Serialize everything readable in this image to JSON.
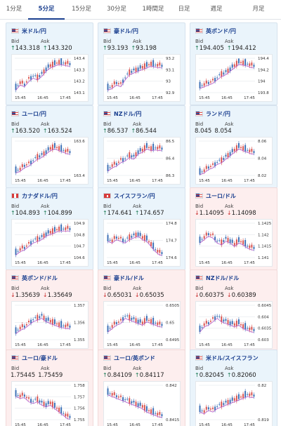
{
  "tabs": [
    {
      "label": "1分足",
      "active": false
    },
    {
      "label": "5分足",
      "active": true
    },
    {
      "label": "15分足",
      "active": false
    },
    {
      "label": "30分足",
      "active": false
    },
    {
      "label": "1時間足",
      "active": false
    },
    {
      "label": "日足",
      "active": false
    },
    {
      "label": "週足",
      "active": false
    },
    {
      "label": "月足",
      "active": false
    }
  ],
  "labels": {
    "bid": "Bid",
    "ask": "Ask"
  },
  "colors": {
    "up_bg": "#eaf4fb",
    "down_bg": "#fdeeee",
    "up_candle": "#3b6fb5",
    "down_candle": "#d9534f",
    "ma_line": "#b056c9",
    "up_arrow": "#1c7a55",
    "down_arrow": "#c92a2a"
  },
  "cards": [
    {
      "title": "米ドル/円",
      "flag": "us",
      "trend": "up",
      "bid": "143.318",
      "ask": "143.320",
      "arrow": "up",
      "x_ticks": [
        "15:45",
        "16:45",
        "17:45"
      ],
      "y_ticks": [
        "143.4",
        "143.3",
        "143.2",
        "143.1"
      ],
      "shape": [
        0.15,
        0.3,
        0.25,
        0.4,
        0.5,
        0.45,
        0.55,
        0.7,
        0.8,
        0.85,
        0.9,
        0.88,
        0.85
      ]
    },
    {
      "title": "豪ドル/円",
      "flag": "au",
      "trend": "up",
      "bid": "93.193",
      "ask": "93.198",
      "arrow": "up",
      "x_ticks": [
        "15:45",
        "16:45",
        "17:45"
      ],
      "y_ticks": [
        "93.2",
        "93.1",
        "93",
        "92.9"
      ],
      "shape": [
        0.15,
        0.2,
        0.3,
        0.25,
        0.45,
        0.6,
        0.65,
        0.7,
        0.75,
        0.8,
        0.85,
        0.82,
        0.8
      ]
    },
    {
      "title": "英ポンド/円",
      "flag": "gb",
      "trend": "up",
      "bid": "194.405",
      "ask": "194.412",
      "arrow": "up",
      "x_ticks": [
        "15:45",
        "16:45",
        "17:45"
      ],
      "y_ticks": [
        "194.4",
        "194.2",
        "194",
        "193.8"
      ],
      "shape": [
        0.2,
        0.25,
        0.3,
        0.35,
        0.45,
        0.55,
        0.6,
        0.7,
        0.8,
        0.9,
        0.88,
        0.85,
        0.8
      ]
    },
    {
      "title": "ユーロ/円",
      "flag": "eu",
      "trend": "up",
      "bid": "163.520",
      "ask": "163.524",
      "arrow": "up",
      "x_ticks": [
        "15:45",
        "16:45",
        "17:45"
      ],
      "y_ticks": [
        "163.6",
        "163.4"
      ],
      "shape": [
        0.15,
        0.2,
        0.3,
        0.35,
        0.45,
        0.55,
        0.6,
        0.7,
        0.8,
        0.85,
        0.8,
        0.75,
        0.7
      ]
    },
    {
      "title": "NZドル/円",
      "flag": "nz",
      "trend": "up",
      "bid": "86.537",
      "ask": "86.544",
      "arrow": "up",
      "x_ticks": [
        "15:45",
        "16:45",
        "17:45"
      ],
      "y_ticks": [
        "86.5",
        "86.4",
        "86.3"
      ],
      "shape": [
        0.2,
        0.3,
        0.35,
        0.45,
        0.5,
        0.6,
        0.55,
        0.7,
        0.75,
        0.85,
        0.8,
        0.82,
        0.8
      ]
    },
    {
      "title": "ランド/円",
      "flag": "za",
      "trend": "up",
      "bid": "8.045",
      "ask": "8.054",
      "arrow": "none",
      "x_ticks": [
        "15:45",
        "16:45",
        "17:45"
      ],
      "y_ticks": [
        "8.06",
        "8.04",
        "8.02"
      ],
      "shape": [
        0.1,
        0.15,
        0.25,
        0.3,
        0.4,
        0.45,
        0.55,
        0.65,
        0.75,
        0.85,
        0.8,
        0.75,
        0.7
      ]
    },
    {
      "title": "カナダドル/円",
      "flag": "ca",
      "trend": "up",
      "bid": "104.893",
      "ask": "104.899",
      "arrow": "up",
      "x_ticks": [
        "15:45",
        "16:45",
        "17:45"
      ],
      "y_ticks": [
        "104.9",
        "104.8",
        "104.7",
        "104.6"
      ],
      "shape": [
        0.15,
        0.25,
        0.3,
        0.4,
        0.5,
        0.55,
        0.6,
        0.7,
        0.75,
        0.8,
        0.85,
        0.85,
        0.85
      ]
    },
    {
      "title": "スイスフラン/円",
      "flag": "ch",
      "trend": "up",
      "bid": "174.641",
      "ask": "174.657",
      "arrow": "up",
      "x_ticks": [
        "15:45",
        "16:45",
        "17:45"
      ],
      "y_ticks": [
        "174.8",
        "174.7",
        "174.6"
      ],
      "shape": [
        0.55,
        0.5,
        0.6,
        0.55,
        0.5,
        0.6,
        0.65,
        0.7,
        0.6,
        0.55,
        0.4,
        0.25,
        0.15
      ]
    },
    {
      "title": "ユーロ/ドル",
      "flag": "eu",
      "trend": "down",
      "bid": "1.14095",
      "ask": "1.14098",
      "arrow": "down",
      "x_ticks": [
        "15:45",
        "16:45",
        "17:45"
      ],
      "y_ticks": [
        "1.1425",
        "1.142",
        "1.1415",
        "1.141"
      ],
      "shape": [
        0.5,
        0.6,
        0.7,
        0.65,
        0.5,
        0.45,
        0.55,
        0.5,
        0.4,
        0.5,
        0.45,
        0.35,
        0.3
      ]
    },
    {
      "title": "英ポンド/ドル",
      "flag": "gb",
      "trend": "down",
      "bid": "1.35639",
      "ask": "1.35649",
      "arrow": "down",
      "x_ticks": [
        "15:45",
        "16:45",
        "17:45"
      ],
      "y_ticks": [
        "1.357",
        "1.356",
        "1.355"
      ],
      "shape": [
        0.25,
        0.35,
        0.4,
        0.5,
        0.6,
        0.65,
        0.7,
        0.6,
        0.55,
        0.5,
        0.45,
        0.42,
        0.4
      ]
    },
    {
      "title": "豪ドル/ドル",
      "flag": "au",
      "trend": "down",
      "bid": "0.65031",
      "ask": "0.65035",
      "arrow": "down",
      "x_ticks": [
        "15:45",
        "16:45",
        "17:45"
      ],
      "y_ticks": [
        "0.6505",
        "0.65",
        "0.6495"
      ],
      "shape": [
        0.3,
        0.4,
        0.5,
        0.55,
        0.7,
        0.65,
        0.6,
        0.55,
        0.5,
        0.6,
        0.55,
        0.5,
        0.45
      ]
    },
    {
      "title": "NZドル/ドル",
      "flag": "nz",
      "trend": "down",
      "bid": "0.60375",
      "ask": "0.60389",
      "arrow": "down",
      "x_ticks": [
        "15:45",
        "16:45",
        "17:45"
      ],
      "y_ticks": [
        "0.6045",
        "0.604",
        "0.6035",
        "0.603"
      ],
      "shape": [
        0.3,
        0.45,
        0.5,
        0.6,
        0.7,
        0.6,
        0.55,
        0.5,
        0.45,
        0.5,
        0.4,
        0.35,
        0.3
      ]
    },
    {
      "title": "ユーロ/豪ドル",
      "flag": "eu",
      "trend": "down",
      "bid": "1.75445",
      "ask": "1.75459",
      "arrow": "none",
      "x_ticks": [
        "15:45",
        "16:45",
        "17:45"
      ],
      "y_ticks": [
        "1.758",
        "1.757",
        "1.756",
        "1.755"
      ],
      "shape": [
        0.75,
        0.7,
        0.72,
        0.6,
        0.55,
        0.6,
        0.5,
        0.45,
        0.5,
        0.4,
        0.3,
        0.2,
        0.1
      ]
    },
    {
      "title": "ユーロ/英ポンド",
      "flag": "eu",
      "trend": "down",
      "bid": "0.84109",
      "ask": "0.84117",
      "arrow": "up",
      "x_ticks": [
        "15:45",
        "16:45",
        "17:45"
      ],
      "y_ticks": [
        "0.842",
        "0.8415"
      ],
      "shape": [
        0.8,
        0.75,
        0.7,
        0.65,
        0.6,
        0.55,
        0.5,
        0.45,
        0.4,
        0.3,
        0.25,
        0.2,
        0.15
      ]
    },
    {
      "title": "米ドル/スイスフラン",
      "flag": "us",
      "trend": "up",
      "bid": "0.82045",
      "ask": "0.82060",
      "arrow": "up",
      "x_ticks": [
        "15:45",
        "16:45",
        "17:45"
      ],
      "y_ticks": [
        "0.82",
        "0.819"
      ],
      "shape": [
        0.3,
        0.25,
        0.35,
        0.3,
        0.4,
        0.45,
        0.5,
        0.55,
        0.6,
        0.65,
        0.7,
        0.75,
        0.72
      ]
    }
  ]
}
